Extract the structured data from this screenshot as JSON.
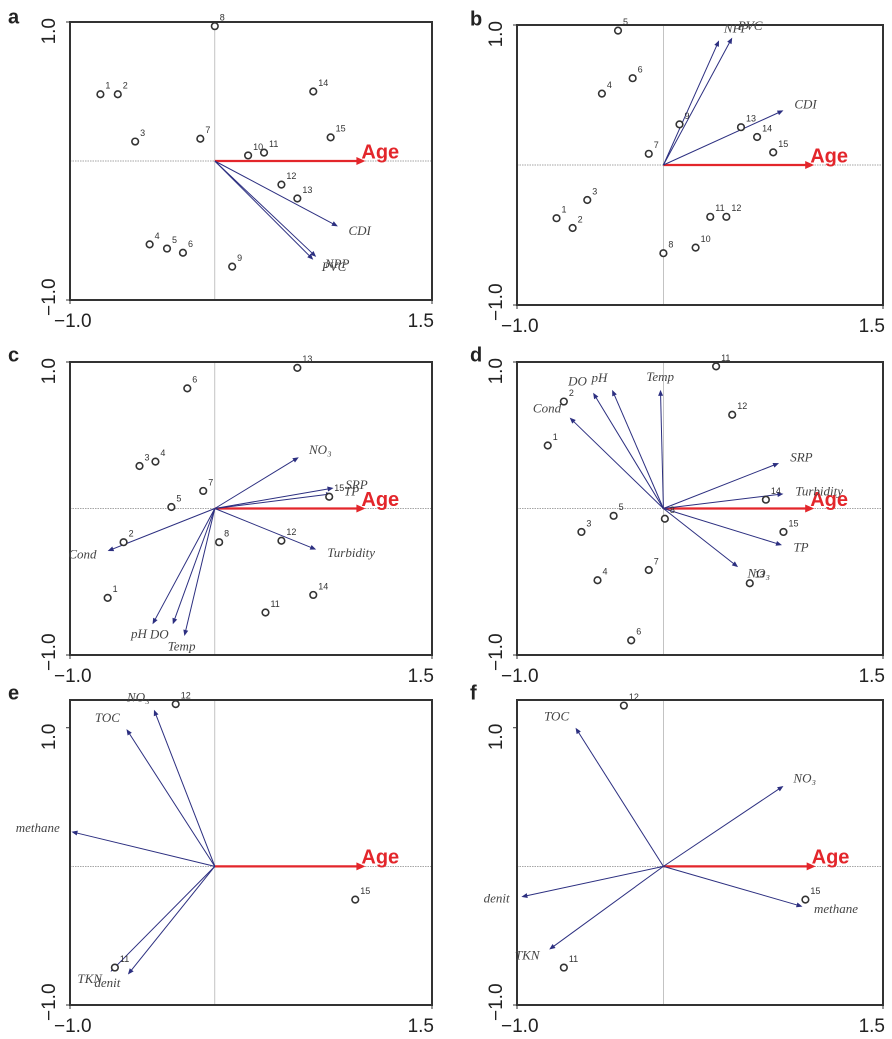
{
  "chart_data": [
    {
      "type": "biplot",
      "panel": "a",
      "xlim": [
        -1,
        1.5
      ],
      "ylim": [
        -1,
        1
      ],
      "xticks": [
        {
          "value": -1,
          "label": "−1.0"
        },
        1.5
      ],
      "yticks": [
        {
          "value": -1,
          "label": "−1.0"
        },
        {
          "value": 1,
          "label": "1.0"
        }
      ],
      "points": {
        "labels": [
          "1",
          "2",
          "3",
          "4",
          "5",
          "6",
          "7",
          "8",
          "9",
          "10",
          "11",
          "12",
          "13",
          "14",
          "15"
        ],
        "x": [
          -0.79,
          -0.67,
          -0.55,
          -0.45,
          -0.33,
          -0.22,
          -0.1,
          0.0,
          0.12,
          0.23,
          0.34,
          0.46,
          0.57,
          0.68,
          0.8
        ],
        "y": [
          0.48,
          0.48,
          0.14,
          -0.6,
          -0.63,
          -0.66,
          0.16,
          0.97,
          -0.76,
          0.04,
          0.06,
          -0.17,
          -0.27,
          0.5,
          0.17
        ]
      },
      "arrows": [
        {
          "name": "Age",
          "x": 1.04,
          "y": 0,
          "color": "#e3262b"
        },
        {
          "name": "CDI",
          "x": 0.85,
          "y": -0.47,
          "color": "#2c2f80"
        },
        {
          "name": "NPP",
          "x": 0.7,
          "y": -0.69,
          "color": "#2c2f80"
        },
        {
          "name": "PVC",
          "x": 0.68,
          "y": -0.71,
          "color": "#2c2f80"
        }
      ]
    },
    {
      "type": "biplot",
      "panel": "b",
      "xlim": [
        -1,
        1.5
      ],
      "ylim": [
        -1,
        1
      ],
      "xticks": [
        {
          "value": -1,
          "label": "−1.0"
        },
        1.5
      ],
      "yticks": [
        {
          "value": -1,
          "label": "−1.0"
        },
        {
          "value": 1,
          "label": "1.0"
        }
      ],
      "points": {
        "labels": [
          "1",
          "2",
          "3",
          "4",
          "5",
          "6",
          "7",
          "8",
          "9",
          "10",
          "11",
          "12",
          "13",
          "14",
          "15"
        ],
        "x": [
          -0.73,
          -0.62,
          -0.52,
          -0.42,
          -0.31,
          -0.21,
          -0.1,
          0.0,
          0.11,
          0.22,
          0.32,
          0.43,
          0.53,
          0.64,
          0.75
        ],
        "y": [
          -0.38,
          -0.45,
          -0.25,
          0.51,
          0.96,
          0.62,
          0.08,
          -0.63,
          0.29,
          -0.59,
          -0.37,
          -0.37,
          0.27,
          0.2,
          0.09
        ]
      },
      "arrows": [
        {
          "name": "Age",
          "x": 1.03,
          "y": 0,
          "color": "#e3262b"
        },
        {
          "name": "CDI",
          "x": 0.82,
          "y": 0.39,
          "color": "#2c2f80"
        },
        {
          "name": "NPP",
          "x": 0.38,
          "y": 0.89,
          "color": "#2c2f80"
        },
        {
          "name": "PVC",
          "x": 0.47,
          "y": 0.91,
          "color": "#2c2f80"
        }
      ]
    },
    {
      "type": "biplot",
      "panel": "c",
      "xlim": [
        -1,
        1.5
      ],
      "ylim": [
        -1,
        1
      ],
      "xticks": [
        {
          "value": -1,
          "label": "−1.0"
        },
        1.5
      ],
      "yticks": [
        {
          "value": -1,
          "label": "−1.0"
        },
        {
          "value": 1,
          "label": "1.0"
        }
      ],
      "points": {
        "labels": [
          "1",
          "2",
          "3",
          "4",
          "5",
          "6",
          "7",
          "8",
          "11",
          "12",
          "13",
          "14",
          "15"
        ],
        "x": [
          -0.74,
          -0.63,
          -0.52,
          -0.41,
          -0.3,
          -0.19,
          -0.08,
          0.03,
          0.35,
          0.46,
          0.57,
          0.68,
          0.79
        ],
        "y": [
          -0.61,
          -0.23,
          0.29,
          0.32,
          0.01,
          0.82,
          0.12,
          -0.23,
          -0.71,
          -0.22,
          0.96,
          -0.59,
          0.08
        ]
      },
      "arrows": [
        {
          "name": "Age",
          "x": 1.04,
          "y": 0,
          "color": "#e3262b"
        },
        {
          "name": "NO₃",
          "x": 0.58,
          "y": 0.35,
          "color": "#2c2f80"
        },
        {
          "name": "SRP",
          "x": 0.82,
          "y": 0.14,
          "color": "#2c2f80"
        },
        {
          "name": "TP",
          "x": 0.81,
          "y": 0.1,
          "color": "#2c2f80"
        },
        {
          "name": "Turbidity",
          "x": 0.7,
          "y": -0.28,
          "color": "#2c2f80"
        },
        {
          "name": "Cond",
          "x": -0.74,
          "y": -0.29,
          "color": "#2c2f80"
        },
        {
          "name": "pH",
          "x": -0.43,
          "y": -0.79,
          "color": "#2c2f80"
        },
        {
          "name": "DO",
          "x": -0.29,
          "y": -0.79,
          "color": "#2c2f80"
        },
        {
          "name": "Temp",
          "x": -0.21,
          "y": -0.87,
          "color": "#2c2f80"
        }
      ]
    },
    {
      "type": "biplot",
      "panel": "d",
      "xlim": [
        -1,
        1.5
      ],
      "ylim": [
        -1,
        1
      ],
      "xticks": [
        {
          "value": -1,
          "label": "−1.0"
        },
        1.5
      ],
      "yticks": [
        {
          "value": -1,
          "label": "−1.0"
        },
        {
          "value": 1,
          "label": "1.0"
        }
      ],
      "points": {
        "labels": [
          "1",
          "2",
          "3",
          "4",
          "5",
          "6",
          "7",
          "8",
          "11",
          "12",
          "13",
          "14",
          "15"
        ],
        "x": [
          -0.79,
          -0.68,
          -0.56,
          -0.45,
          -0.34,
          -0.22,
          -0.1,
          0.01,
          0.36,
          0.47,
          0.59,
          0.7,
          0.82
        ],
        "y": [
          0.43,
          0.73,
          -0.16,
          -0.49,
          -0.05,
          -0.9,
          -0.42,
          -0.07,
          0.97,
          0.64,
          -0.51,
          0.06,
          -0.16
        ]
      },
      "arrows": [
        {
          "name": "Age",
          "x": 1.03,
          "y": 0,
          "color": "#e3262b"
        },
        {
          "name": "SRP",
          "x": 0.79,
          "y": 0.31,
          "color": "#2c2f80"
        },
        {
          "name": "Turbidity",
          "x": 0.82,
          "y": 0.1,
          "color": "#2c2f80"
        },
        {
          "name": "TP",
          "x": 0.81,
          "y": -0.25,
          "color": "#2c2f80"
        },
        {
          "name": "NO₃",
          "x": 0.51,
          "y": -0.4,
          "color": "#2c2f80"
        },
        {
          "name": "Temp",
          "x": -0.02,
          "y": 0.81,
          "color": "#2c2f80"
        },
        {
          "name": "pH",
          "x": -0.35,
          "y": 0.81,
          "color": "#2c2f80"
        },
        {
          "name": "DO",
          "x": -0.48,
          "y": 0.79,
          "color": "#2c2f80"
        },
        {
          "name": "Cond",
          "x": -0.64,
          "y": 0.62,
          "color": "#2c2f80"
        }
      ]
    },
    {
      "type": "biplot",
      "panel": "e",
      "xlim": [
        -1,
        1.5
      ],
      "ylim": [
        -1,
        1.2
      ],
      "xticks": [
        {
          "value": -1,
          "label": "−1.0"
        },
        1.5
      ],
      "yticks": [
        {
          "value": -1,
          "label": "−1.0"
        },
        {
          "value": 1,
          "label": "1.0"
        }
      ],
      "points": {
        "labels": [
          "11",
          "12",
          "15"
        ],
        "x": [
          -0.69,
          -0.27,
          0.97
        ],
        "y": [
          -0.73,
          1.17,
          -0.24
        ]
      },
      "arrows": [
        {
          "name": "Age",
          "x": 1.04,
          "y": 0,
          "color": "#e3262b"
        },
        {
          "name": "NO₃",
          "x": -0.42,
          "y": 1.13,
          "color": "#2c2f80"
        },
        {
          "name": "TOC",
          "x": -0.61,
          "y": 0.99,
          "color": "#2c2f80"
        },
        {
          "name": "methane",
          "x": -0.99,
          "y": 0.25,
          "color": "#2c2f80"
        },
        {
          "name": "TKN",
          "x": -0.72,
          "y": -0.76,
          "color": "#2c2f80"
        },
        {
          "name": "denit",
          "x": -0.6,
          "y": -0.78,
          "color": "#2c2f80"
        }
      ]
    },
    {
      "type": "biplot",
      "panel": "f",
      "xlim": [
        -1,
        1.5
      ],
      "ylim": [
        -1,
        1.2
      ],
      "xticks": [
        {
          "value": -1,
          "label": "−1.0"
        },
        1.5
      ],
      "yticks": [
        {
          "value": -1,
          "label": "−1.0"
        },
        {
          "value": 1,
          "label": "1.0"
        }
      ],
      "points": {
        "labels": [
          "11",
          "12",
          "15"
        ],
        "x": [
          -0.68,
          -0.27,
          0.97
        ],
        "y": [
          -0.73,
          1.16,
          -0.24
        ]
      },
      "arrows": [
        {
          "name": "Age",
          "x": 1.04,
          "y": 0,
          "color": "#e3262b"
        },
        {
          "name": "NO₃",
          "x": 0.82,
          "y": 0.58,
          "color": "#2c2f80"
        },
        {
          "name": "TOC",
          "x": -0.6,
          "y": 1.0,
          "color": "#2c2f80"
        },
        {
          "name": "denit",
          "x": -0.97,
          "y": -0.22,
          "color": "#2c2f80"
        },
        {
          "name": "methane",
          "x": 0.95,
          "y": -0.29,
          "color": "#2c2f80"
        },
        {
          "name": "TKN",
          "x": -0.78,
          "y": -0.6,
          "color": "#2c2f80"
        }
      ]
    }
  ]
}
